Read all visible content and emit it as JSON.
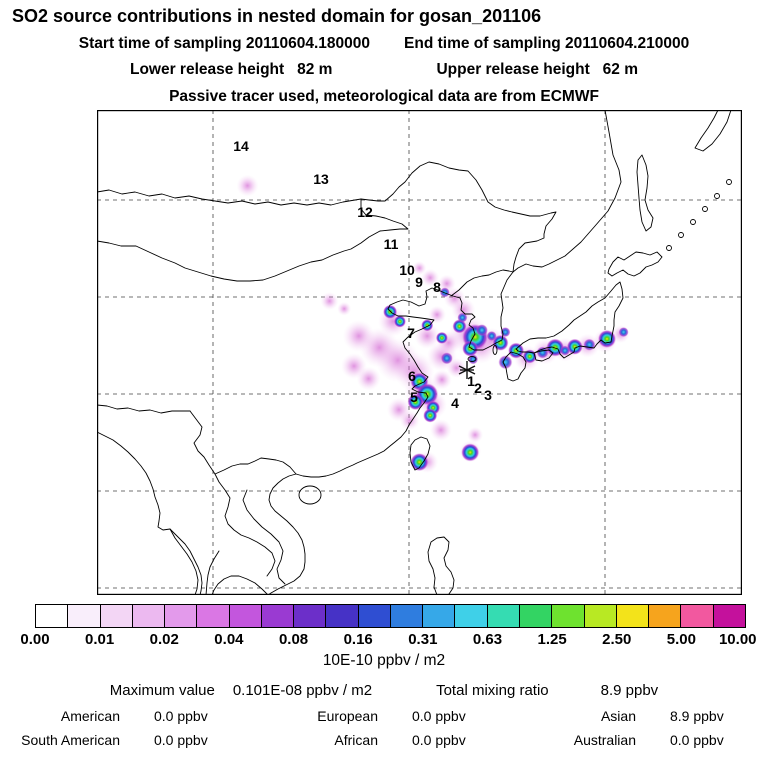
{
  "header": {
    "title": "SO2 source contributions in nested domain for gosan_201106",
    "start_time": "Start time of sampling 20110604.180000",
    "end_time": "End time of sampling 20110604.210000",
    "lower_release": "Lower release height   82 m",
    "upper_release": "Upper release height   62 m",
    "tracer_note": "Passive tracer used, meteorological data are from ECMWF"
  },
  "map": {
    "station": "gosan",
    "trajectory_labels": [
      "1",
      "2",
      "3",
      "4",
      "5",
      "6",
      "7",
      "8",
      "9",
      "10",
      "11",
      "12",
      "13",
      "14"
    ]
  },
  "chart_data": {
    "type": "heatmap",
    "title": "SO2 source contributions in nested domain for gosan_201106",
    "x_axis": "longitude",
    "y_axis": "latitude",
    "lon_range": [
      88,
      154
    ],
    "lat_range": [
      9,
      59
    ],
    "grid": "dashed",
    "sampling_start": "20110604.180000",
    "sampling_end": "20110604.210000",
    "release_heights_m": {
      "lower": 82,
      "upper": 62
    },
    "meteorology": "ECMWF",
    "tracer": "Passive tracer",
    "colorbar": {
      "scale": "logarithmic",
      "unit": "10E-10 ppbv / m2",
      "ticks": [
        "0.00",
        "0.01",
        "0.02",
        "0.04",
        "0.08",
        "0.16",
        "0.31",
        "0.63",
        "1.25",
        "2.50",
        "5.00",
        "10.00"
      ],
      "colors": [
        "#ffffff",
        "#f9eefb",
        "#f3d6f5",
        "#ecb9f0",
        "#e39aeb",
        "#da77e4",
        "#c356dd",
        "#9a3ad2",
        "#6c2fc9",
        "#4632c6",
        "#2f4ed2",
        "#2f7ddf",
        "#36a8e8",
        "#3fd0e8",
        "#35dcb2",
        "#33d463",
        "#6ee22f",
        "#b8e923",
        "#f3e31a",
        "#f6a41d",
        "#f2589f",
        "#c4119c"
      ]
    },
    "max_value": "0.101E-08 ppbv / m2",
    "total_mixing_ratio_ppbv": 8.9,
    "contributions_ppbv": {
      "American": 0.0,
      "European": 0.0,
      "Asian": 8.9,
      "South American": 0.0,
      "African": 0.0,
      "Australian": 0.0
    },
    "blobs": [
      {
        "lon": 103.4,
        "lat": 51.2,
        "r": 11,
        "k": "plume"
      },
      {
        "lon": 111.8,
        "lat": 39.3,
        "r": 9,
        "k": "plume"
      },
      {
        "lon": 113.3,
        "lat": 38.5,
        "r": 7,
        "k": "plume"
      },
      {
        "lon": 114.8,
        "lat": 35.7,
        "r": 16,
        "k": "plume"
      },
      {
        "lon": 116.9,
        "lat": 34.5,
        "r": 20,
        "k": "plume"
      },
      {
        "lon": 118.8,
        "lat": 33.2,
        "r": 22,
        "k": "plume"
      },
      {
        "lon": 120.5,
        "lat": 32.0,
        "r": 20,
        "k": "plume"
      },
      {
        "lon": 114.3,
        "lat": 32.6,
        "r": 13,
        "k": "plume"
      },
      {
        "lon": 115.8,
        "lat": 31.3,
        "r": 12,
        "k": "plume"
      },
      {
        "lon": 118.3,
        "lat": 37.2,
        "r": 15,
        "k": "plume"
      },
      {
        "lon": 121.8,
        "lat": 35.7,
        "r": 13,
        "k": "plume"
      },
      {
        "lon": 123.3,
        "lat": 33.6,
        "r": 15,
        "k": "plume"
      },
      {
        "lon": 124.0,
        "lat": 35.0,
        "r": 12,
        "k": "plume"
      },
      {
        "lon": 123.8,
        "lat": 41.1,
        "r": 9,
        "k": "plume"
      },
      {
        "lon": 124.6,
        "lat": 39.6,
        "r": 11,
        "k": "plume"
      },
      {
        "lon": 125.5,
        "lat": 38.4,
        "r": 12,
        "k": "plume"
      },
      {
        "lon": 126.0,
        "lat": 35.9,
        "r": 20,
        "k": "plume"
      },
      {
        "lon": 127.3,
        "lat": 34.6,
        "r": 17,
        "k": "plume"
      },
      {
        "lon": 128.4,
        "lat": 35.3,
        "r": 12,
        "k": "plume"
      },
      {
        "lon": 132.0,
        "lat": 33.4,
        "r": 13,
        "k": "plume"
      },
      {
        "lon": 133.9,
        "lat": 34.1,
        "r": 13,
        "k": "plume"
      },
      {
        "lon": 135.9,
        "lat": 34.3,
        "r": 12,
        "k": "plume"
      },
      {
        "lon": 138.2,
        "lat": 34.7,
        "r": 12,
        "k": "plume"
      },
      {
        "lon": 140.0,
        "lat": 35.2,
        "r": 12,
        "k": "plume"
      },
      {
        "lon": 141.6,
        "lat": 35.9,
        "r": 9,
        "k": "plume"
      },
      {
        "lon": 121.3,
        "lat": 29.9,
        "r": 18,
        "k": "plume"
      },
      {
        "lon": 122.4,
        "lat": 28.6,
        "r": 14,
        "k": "plume"
      },
      {
        "lon": 123.2,
        "lat": 26.0,
        "r": 11,
        "k": "plume"
      },
      {
        "lon": 121.8,
        "lat": 22.7,
        "r": 11,
        "k": "plume"
      },
      {
        "lon": 126.2,
        "lat": 23.8,
        "r": 11,
        "k": "plume"
      },
      {
        "lon": 118.9,
        "lat": 28.1,
        "r": 12,
        "k": "plume"
      },
      {
        "lon": 120.0,
        "lat": 27.0,
        "r": 10,
        "k": "plume"
      },
      {
        "lon": 126.7,
        "lat": 25.5,
        "r": 8,
        "k": "plume"
      },
      {
        "lon": 124.8,
        "lat": 32.4,
        "r": 10,
        "k": "plume"
      },
      {
        "lon": 123.3,
        "lat": 31.2,
        "r": 10,
        "k": "plume"
      },
      {
        "lon": 122.1,
        "lat": 41.7,
        "r": 9,
        "k": "plume"
      },
      {
        "lon": 121.0,
        "lat": 42.7,
        "r": 7,
        "k": "plume"
      },
      {
        "lon": 122.8,
        "lat": 37.9,
        "r": 9,
        "k": "plume"
      },
      {
        "lon": 126.7,
        "lat": 35.6,
        "r": 13,
        "k": "hot"
      },
      {
        "lon": 126.2,
        "lat": 34.4,
        "r": 8,
        "k": "hot"
      },
      {
        "lon": 129.3,
        "lat": 35.0,
        "r": 8,
        "k": "hot"
      },
      {
        "lon": 125.1,
        "lat": 36.7,
        "r": 7,
        "k": "hot"
      },
      {
        "lon": 130.9,
        "lat": 34.2,
        "r": 8,
        "k": "hot"
      },
      {
        "lon": 132.3,
        "lat": 33.6,
        "r": 7,
        "k": "hot"
      },
      {
        "lon": 134.9,
        "lat": 34.5,
        "r": 9,
        "k": "hot"
      },
      {
        "lon": 136.9,
        "lat": 34.6,
        "r": 8,
        "k": "hot"
      },
      {
        "lon": 140.2,
        "lat": 35.4,
        "r": 9,
        "k": "hot"
      },
      {
        "lon": 121.0,
        "lat": 31.0,
        "r": 9,
        "k": "hot"
      },
      {
        "lon": 121.8,
        "lat": 29.7,
        "r": 11,
        "k": "hot"
      },
      {
        "lon": 120.6,
        "lat": 28.9,
        "r": 8,
        "k": "hot"
      },
      {
        "lon": 122.4,
        "lat": 28.3,
        "r": 7,
        "k": "hot"
      },
      {
        "lon": 122.1,
        "lat": 27.5,
        "r": 7,
        "k": "hot"
      },
      {
        "lon": 121.0,
        "lat": 22.7,
        "r": 9,
        "k": "hot"
      },
      {
        "lon": 126.2,
        "lat": 23.7,
        "r": 9,
        "k": "hot"
      },
      {
        "lon": 118.0,
        "lat": 38.2,
        "r": 7,
        "k": "hot"
      },
      {
        "lon": 119.0,
        "lat": 37.2,
        "r": 6,
        "k": "hot"
      },
      {
        "lon": 121.8,
        "lat": 36.8,
        "r": 6,
        "k": "hot"
      },
      {
        "lon": 123.3,
        "lat": 35.5,
        "r": 6,
        "k": "hot"
      },
      {
        "lon": 133.6,
        "lat": 34.0,
        "r": 6,
        "k": "spot"
      },
      {
        "lon": 135.9,
        "lat": 34.2,
        "r": 5,
        "k": "spot"
      },
      {
        "lon": 138.4,
        "lat": 34.8,
        "r": 6,
        "k": "spot"
      },
      {
        "lon": 141.9,
        "lat": 36.1,
        "r": 5,
        "k": "spot"
      },
      {
        "lon": 128.4,
        "lat": 35.7,
        "r": 5,
        "k": "spot"
      },
      {
        "lon": 129.8,
        "lat": 33.0,
        "r": 7,
        "k": "spot"
      },
      {
        "lon": 126.5,
        "lat": 33.3,
        "r": 5,
        "k": "spot"
      },
      {
        "lon": 123.8,
        "lat": 33.4,
        "r": 6,
        "k": "spot"
      },
      {
        "lon": 125.4,
        "lat": 37.6,
        "r": 5,
        "k": "spot"
      },
      {
        "lon": 127.4,
        "lat": 36.3,
        "r": 6,
        "k": "spot"
      },
      {
        "lon": 123.6,
        "lat": 40.2,
        "r": 5,
        "k": "spot"
      },
      {
        "lon": 129.8,
        "lat": 36.1,
        "r": 5,
        "k": "spot"
      }
    ]
  },
  "footer": {
    "max_label": "Maximum value",
    "max_value": "0.101E-08 ppbv / m2",
    "total_label": "Total mixing ratio",
    "total_value": "8.9 ppbv",
    "regions": [
      {
        "label": "American",
        "value": "0.0 ppbv"
      },
      {
        "label": "European",
        "value": "0.0 ppbv"
      },
      {
        "label": "Asian",
        "value": "8.9 ppbv"
      },
      {
        "label": "South American",
        "value": "0.0 ppbv"
      },
      {
        "label": "African",
        "value": "0.0 ppbv"
      },
      {
        "label": "Australian",
        "value": "0.0 ppbv"
      }
    ]
  }
}
